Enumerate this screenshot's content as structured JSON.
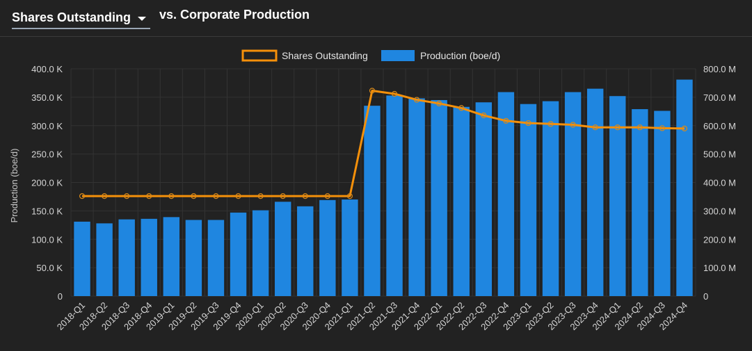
{
  "header": {
    "metric_select_label": "Shares Outstanding",
    "vs_label": "vs. Corporate Production"
  },
  "colors": {
    "background": "#222222",
    "bar": "#1f86e0",
    "line": "#f5900a",
    "grid": "#333333"
  },
  "chart_data": {
    "type": "bar",
    "categories": [
      "2018-Q1",
      "2018-Q2",
      "2018-Q3",
      "2018-Q4",
      "2019-Q1",
      "2019-Q2",
      "2019-Q3",
      "2019-Q4",
      "2020-Q1",
      "2020-Q2",
      "2020-Q3",
      "2020-Q4",
      "2021-Q1",
      "2021-Q2",
      "2021-Q3",
      "2021-Q4",
      "2022-Q1",
      "2022-Q2",
      "2022-Q3",
      "2022-Q4",
      "2023-Q1",
      "2023-Q2",
      "2023-Q3",
      "2023-Q4",
      "2024-Q1",
      "2024-Q2",
      "2024-Q3",
      "2024-Q4"
    ],
    "series": [
      {
        "name": "Production (boe/d)",
        "type": "bar",
        "axis": "left",
        "values": [
          131000,
          128000,
          135000,
          136000,
          139000,
          134000,
          134000,
          147000,
          151000,
          166000,
          158000,
          169000,
          170000,
          335000,
          353000,
          348000,
          345000,
          333000,
          341000,
          359000,
          338000,
          343000,
          359000,
          365000,
          352000,
          329000,
          326000,
          381000
        ]
      },
      {
        "name": "Shares Outstanding",
        "type": "line",
        "axis": "right",
        "values": [
          352000000,
          352000000,
          352000000,
          352000000,
          352000000,
          352000000,
          352000000,
          352000000,
          352000000,
          352000000,
          352000000,
          352000000,
          352000000,
          723000000,
          712000000,
          691000000,
          678000000,
          662000000,
          636000000,
          617000000,
          609000000,
          606000000,
          603000000,
          594000000,
          594000000,
          594000000,
          591000000,
          590000000
        ]
      }
    ],
    "y_left": {
      "label": "Production (boe/d)",
      "ylim": [
        0,
        400000
      ],
      "ticks": [
        "0",
        "50.0 K",
        "100.0 K",
        "150.0 K",
        "200.0 K",
        "250.0 K",
        "300.0 K",
        "350.0 K",
        "400.0 K"
      ]
    },
    "y_right": {
      "ylim": [
        0,
        800000000
      ],
      "ticks": [
        "0",
        "100.0 M",
        "200.0 M",
        "300.0 M",
        "400.0 M",
        "500.0 M",
        "600.0 M",
        "700.0 M",
        "800.0 M"
      ]
    },
    "legend": {
      "placement": "top-center",
      "items": [
        "Shares Outstanding",
        "Production (boe/d)"
      ]
    },
    "grid": true
  }
}
